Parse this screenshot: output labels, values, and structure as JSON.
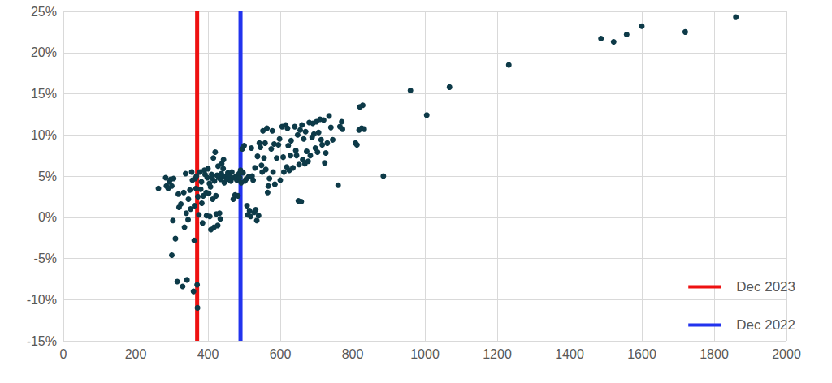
{
  "chart_data": {
    "type": "scatter",
    "x": [
      263,
      283,
      285,
      290,
      293,
      297,
      300,
      303,
      305,
      300,
      310,
      315,
      318,
      320,
      325,
      330,
      333,
      335,
      338,
      340,
      342,
      345,
      346,
      350,
      352,
      355,
      357,
      360,
      362,
      363,
      365,
      367,
      368,
      370,
      371,
      372,
      375,
      378,
      380,
      382,
      383,
      385,
      387,
      390,
      392,
      395,
      396,
      398,
      400,
      402,
      404,
      405,
      407,
      408,
      410,
      412,
      413,
      415,
      417,
      418,
      420,
      422,
      423,
      425,
      427,
      428,
      430,
      432,
      434,
      435,
      437,
      438,
      440,
      442,
      443,
      445,
      447,
      450,
      452,
      455,
      458,
      460,
      463,
      466,
      470,
      472,
      475,
      478,
      480,
      483,
      486,
      488,
      490,
      492,
      495,
      497,
      500,
      502,
      505,
      508,
      510,
      512,
      515,
      518,
      520,
      522,
      525,
      528,
      530,
      532,
      535,
      537,
      540,
      542,
      545,
      548,
      550,
      552,
      555,
      558,
      560,
      563,
      565,
      567,
      570,
      575,
      578,
      580,
      583,
      585,
      590,
      595,
      598,
      600,
      605,
      608,
      610,
      615,
      618,
      620,
      622,
      625,
      628,
      630,
      635,
      640,
      643,
      645,
      648,
      650,
      652,
      655,
      658,
      660,
      662,
      665,
      668,
      670,
      673,
      677,
      680,
      683,
      688,
      690,
      693,
      697,
      700,
      703,
      706,
      710,
      713,
      716,
      720,
      723,
      726,
      730,
      735,
      740,
      745,
      760,
      765,
      770,
      772,
      808,
      812,
      818,
      820,
      825,
      828,
      832,
      885,
      960,
      1005,
      1068,
      1232,
      1487,
      1522,
      1558,
      1600,
      1720,
      1860
    ],
    "values": [
      3.5,
      4.8,
      3.8,
      3.5,
      4.3,
      4.6,
      3.8,
      -0.4,
      4.7,
      -4.6,
      -2.6,
      -7.8,
      2.8,
      1.2,
      1.6,
      -8.4,
      3.0,
      -1.2,
      5.3,
      0.5,
      -7.6,
      -0.3,
      2.2,
      3.3,
      1.0,
      5.5,
      4.5,
      -9.0,
      -2.8,
      1.4,
      4.7,
      3.5,
      5.0,
      -8.2,
      -11.0,
      2.5,
      0.3,
      5.5,
      3.4,
      4.3,
      1.7,
      -0.7,
      2.6,
      5.7,
      5.2,
      3.0,
      0.2,
      4.8,
      5.9,
      2.9,
      4.1,
      0.1,
      3.7,
      -1.5,
      5.2,
      4.7,
      2.2,
      7.2,
      -1.2,
      4.4,
      7.9,
      2.6,
      0.4,
      5.1,
      -1.0,
      6.2,
      4.8,
      0.5,
      -0.2,
      4.6,
      5.3,
      6.5,
      5.0,
      5.9,
      7.0,
      4.2,
      4.9,
      5.0,
      4.6,
      5.4,
      4.8,
      5.2,
      4.4,
      5.5,
      2.2,
      4.8,
      2.7,
      5.0,
      4.5,
      2.6,
      5.3,
      4.8,
      5.7,
      4.2,
      8.3,
      5.4,
      8.7,
      4.4,
      4.6,
      1.4,
      0.3,
      4.9,
      0.8,
      0.1,
      8.4,
      5.0,
      4.5,
      0.6,
      6.0,
      0.9,
      -0.4,
      7.4,
      0.2,
      9.0,
      8.5,
      6.3,
      5.5,
      10.5,
      7.2,
      9.0,
      5.8,
      10.8,
      3.0,
      3.8,
      4.7,
      8.3,
      10.5,
      5.5,
      8.9,
      4.0,
      7.2,
      8.8,
      9.5,
      4.5,
      11.0,
      7.3,
      5.5,
      11.2,
      6.1,
      10.8,
      8.7,
      5.7,
      7.5,
      9.3,
      6.0,
      11.0,
      8.1,
      7.5,
      10.0,
      2.0,
      6.4,
      10.6,
      1.9,
      11.2,
      7.0,
      9.5,
      6.5,
      10.4,
      8.0,
      6.8,
      11.5,
      7.5,
      9.7,
      11.4,
      10.1,
      8.4,
      11.6,
      7.9,
      10.3,
      11.9,
      9.4,
      8.8,
      11.8,
      6.6,
      7.8,
      9.0,
      12.3,
      10.9,
      9.4,
      3.9,
      11.0,
      11.6,
      10.7,
      9.0,
      8.8,
      10.6,
      13.4,
      10.8,
      13.6,
      10.7,
      5.0,
      15.4,
      12.4,
      15.8,
      18.5,
      21.7,
      21.3,
      22.2,
      23.2,
      22.5,
      24.3
    ],
    "color": "#0d3a48",
    "xlim": [
      0,
      2000
    ],
    "xticks": [
      0,
      200,
      400,
      600,
      800,
      1000,
      1200,
      1400,
      1600,
      1800,
      2000
    ],
    "ylim": [
      -15,
      25
    ],
    "yticks": [
      {
        "value": -15,
        "label": "-15%"
      },
      {
        "value": -10,
        "label": "-10%"
      },
      {
        "value": -5,
        "label": "-5%"
      },
      {
        "value": 0,
        "label": "0%"
      },
      {
        "value": 5,
        "label": "5%"
      },
      {
        "value": 10,
        "label": "10%"
      },
      {
        "value": 15,
        "label": "15%"
      },
      {
        "value": 20,
        "label": "20%"
      },
      {
        "value": 25,
        "label": "25%"
      }
    ],
    "grid": true,
    "legend": "bottom-right",
    "vertical_lines": [
      {
        "x": 370,
        "label": "Dec 2023",
        "color": "#ee1111"
      },
      {
        "x": 490,
        "label": "Dec 2022",
        "color": "#2233ee"
      }
    ]
  }
}
